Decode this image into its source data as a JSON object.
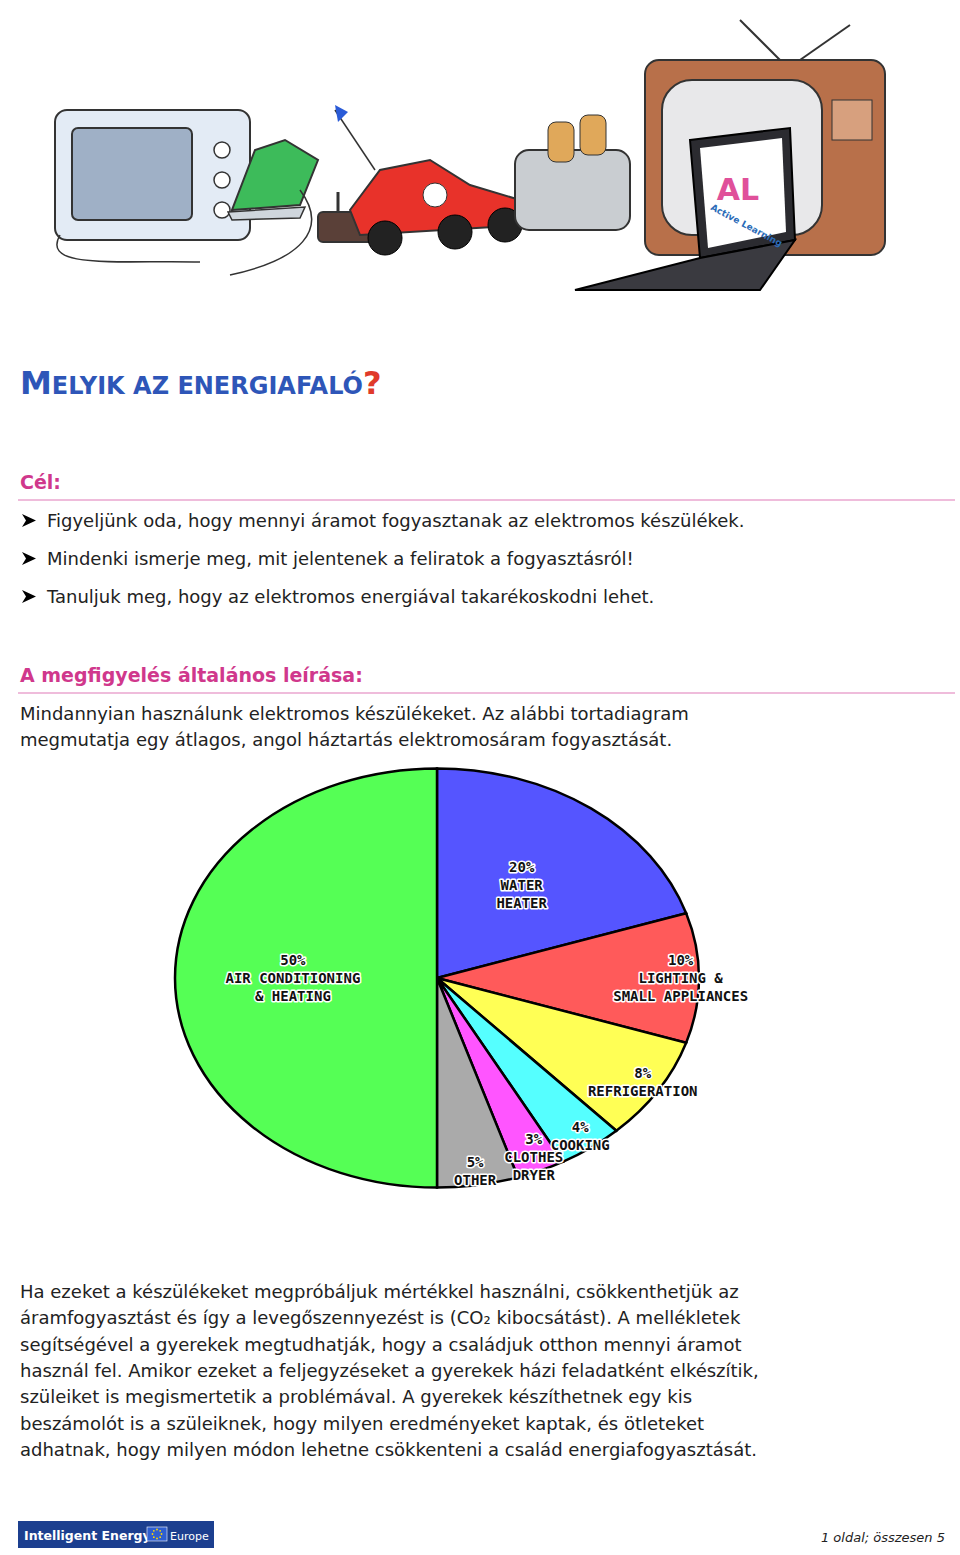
{
  "illustration": {
    "screen_logo": "AL",
    "screen_text": "Active Learning"
  },
  "title": "MELYIK AZ ENERGIAFALÓ?",
  "sections": [
    {
      "heading": "Cél:",
      "bullets": [
        "Figyeljünk oda, hogy mennyi áramot fogyasztanak az elektromos készülékek.",
        "Mindenki ismerje meg, mit jelentenek a feliratok a fogyasztásról!",
        "Tanuljuk meg, hogy az elektromos energiával takarékoskodni lehet."
      ]
    },
    {
      "heading": "A megfigyelés általános leírása:",
      "lines": [
        "Mindannyian használunk elektromos készülékeket. Az alábbi tortadiagram",
        "megmutatja egy átlagos, angol háztartás elektromosáram fogyasztását."
      ]
    }
  ],
  "chart_data": {
    "type": "pie",
    "categories": [
      "WATER\nHEATER",
      "LIGHTING &\nSMALL APPLIANCES",
      "REFRIGERATION",
      "COOKING",
      "CLOTHES\nDRYER",
      "OTHER",
      "AIR CONDITIONING\n& HEATING"
    ],
    "values": [
      20,
      10,
      8,
      4,
      3,
      5,
      50
    ],
    "value_labels": [
      "20%",
      "10%",
      "8%",
      "4%",
      "3%",
      "5%",
      "50%"
    ],
    "colors": [
      "#5555ff",
      "#ff5a5a",
      "#ffff55",
      "#55ffff",
      "#ff55ff",
      "#aaaaaa",
      "#55ff55"
    ],
    "data_labels": true
  },
  "closing_lines": [
    "Ha ezeket a készülékeket megpróbáljuk mértékkel használni, csökkenthetjük az",
    "áramfogyasztást és így a levegőszennyezést is (CO₂ kibocsátást). A mellékletek",
    "segítségével a gyerekek megtudhatják, hogy a családjuk otthon mennyi áramot",
    "használ fel. Amikor ezeket a feljegyzéseket a gyerekek házi feladatként elkészítik,",
    "szüleiket is megismertetik a problémával. A gyerekek készíthetnek egy kis",
    "beszámolót is a szüleiknek, hogy milyen eredményeket kaptak, és ötleteket",
    "adhatnak, hogy milyen módon lehetne csökkenteni a család energiafogyasztását."
  ],
  "footer": {
    "logo_text": "Intelligent Energy",
    "logo_region": "Europe",
    "page": "1 oldal; összesen 5"
  }
}
